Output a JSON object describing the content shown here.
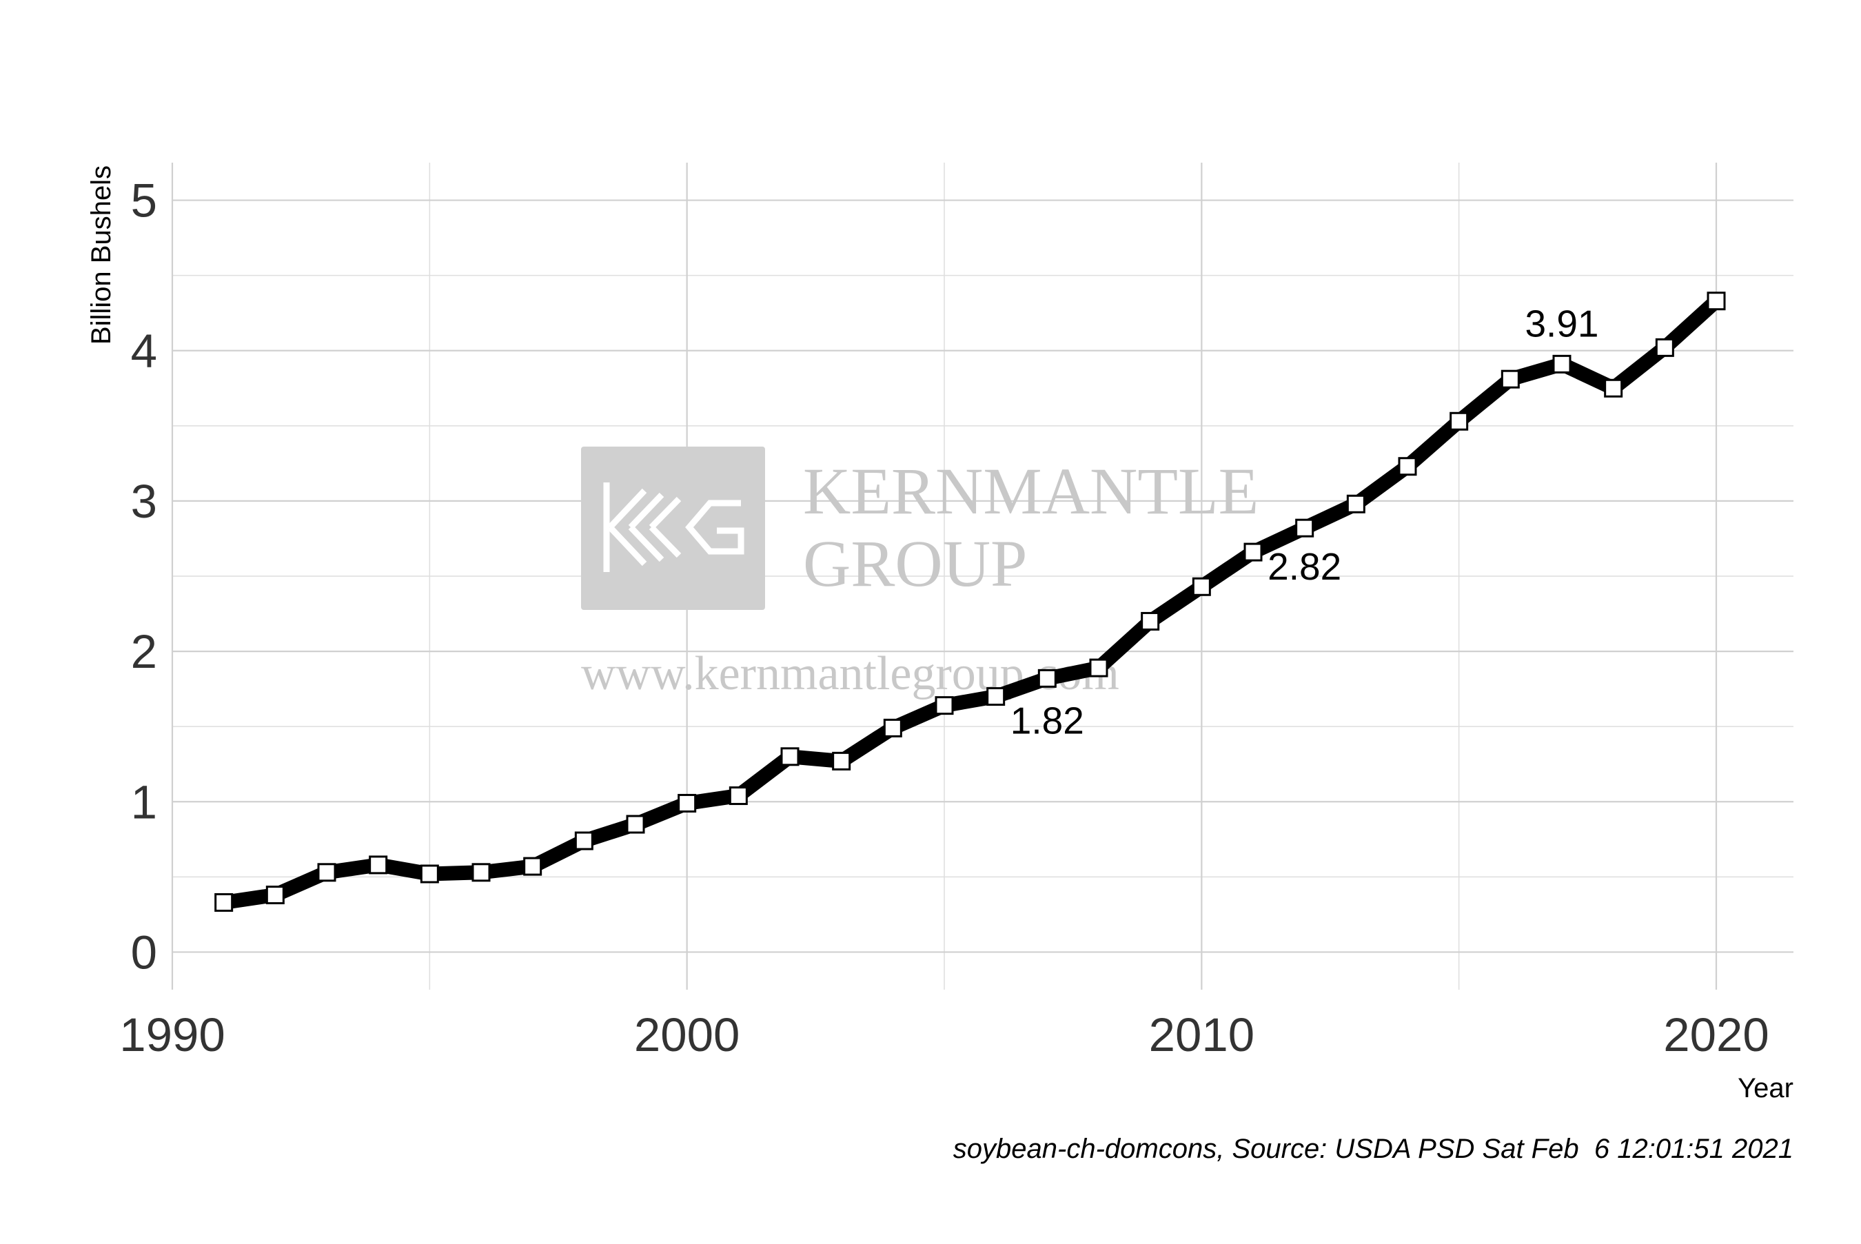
{
  "chart_data": {
    "type": "line",
    "xlabel": "Year",
    "ylabel": "Billion Bushels",
    "caption": "soybean-ch-domcons, Source: USDA PSD Sat Feb  6 12:01:51 2021",
    "xlim": [
      1990,
      2021.5
    ],
    "ylim": [
      -0.25,
      5.25
    ],
    "x_ticks": [
      1990,
      2000,
      2010,
      2020
    ],
    "y_ticks": [
      0,
      1,
      2,
      3,
      4,
      5
    ],
    "grid": true,
    "legend": "none",
    "line_color": "#000000",
    "marker": "square",
    "marker_fill": "#ffffff",
    "series": [
      {
        "x": [
          1991,
          1992,
          1993,
          1994,
          1995,
          1996,
          1997,
          1998,
          1999,
          2000,
          2001,
          2002,
          2003,
          2004,
          2005,
          2006,
          2007,
          2008,
          2009,
          2010,
          2011,
          2012,
          2013,
          2014,
          2015,
          2016,
          2017,
          2018,
          2019,
          2020
        ],
        "values": [
          0.33,
          0.38,
          0.53,
          0.58,
          0.52,
          0.53,
          0.57,
          0.74,
          0.85,
          0.99,
          1.04,
          1.3,
          1.27,
          1.49,
          1.64,
          1.7,
          1.82,
          1.89,
          2.2,
          2.43,
          2.66,
          2.82,
          2.98,
          3.23,
          3.53,
          3.81,
          3.91,
          3.75,
          4.02,
          4.33
        ]
      }
    ],
    "annotations": [
      {
        "x": 2007,
        "y": 1.82,
        "text": "1.82"
      },
      {
        "x": 2012,
        "y": 2.82,
        "text": "2.82"
      },
      {
        "x": 2017,
        "y": 3.91,
        "text": "3.91"
      }
    ]
  },
  "watermark": {
    "line1": "KERNMANTLE",
    "line2": "GROUP",
    "url": "www.kernmantlegroup.com",
    "color": "#c8c8c8"
  }
}
